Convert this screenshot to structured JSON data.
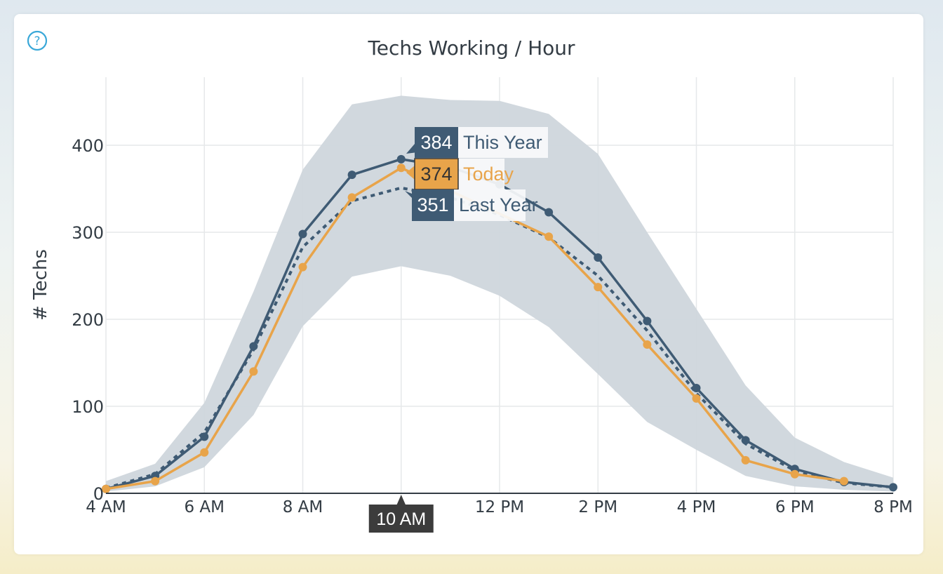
{
  "help_icon": "question-circle-icon",
  "chart_data": {
    "type": "line",
    "title": "Techs Working / Hour",
    "ylabel": "# Techs",
    "xlabel": "",
    "x_tick_labels": [
      "4 AM",
      "6 AM",
      "8 AM",
      "10 AM",
      "12 PM",
      "2 PM",
      "4 PM",
      "6 PM",
      "8 PM"
    ],
    "x_hours": [
      4,
      5,
      6,
      7,
      8,
      9,
      10,
      11,
      12,
      13,
      14,
      15,
      16,
      17,
      18,
      19,
      20
    ],
    "ylim": [
      0,
      480
    ],
    "y_ticks": [
      0,
      100,
      200,
      300,
      400
    ],
    "grid": true,
    "series": [
      {
        "name": "This Year",
        "color": "#3f5b74",
        "style": "solid",
        "markers": true,
        "values": [
          5,
          20,
          65,
          169,
          298,
          366,
          384,
          375,
          355,
          323,
          271,
          198,
          121,
          61,
          28,
          13,
          7
        ]
      },
      {
        "name": "Today",
        "color": "#e8a44a",
        "style": "solid",
        "markers": true,
        "values": [
          5,
          14,
          47,
          140,
          260,
          340,
          374,
          null,
          null,
          295,
          237,
          171,
          109,
          38,
          22,
          14,
          null
        ]
      },
      {
        "name": "Last Year",
        "color": "#3f5b74",
        "style": "dashed",
        "markers": false,
        "values": [
          6,
          22,
          70,
          165,
          283,
          336,
          351,
          340,
          320,
          294,
          250,
          187,
          115,
          57,
          26,
          12,
          7
        ]
      }
    ],
    "band": {
      "color": "#cfd6dc",
      "upper": [
        14,
        34,
        104,
        232,
        372,
        447,
        457,
        452,
        451,
        436,
        390,
        300,
        212,
        124,
        64,
        36,
        18
      ],
      "lower": [
        2,
        8,
        30,
        90,
        192,
        249,
        261,
        250,
        227,
        191,
        137,
        82,
        50,
        20,
        8,
        4,
        2
      ]
    },
    "hover": {
      "x_label": "10 AM",
      "x_hour": 10,
      "items": [
        {
          "value": "384",
          "label": "This Year",
          "box_color": "#3f5b74",
          "text_color": "#3f5b74",
          "y": 384
        },
        {
          "value": "374",
          "label": "Today",
          "box_color": "#e8a44a",
          "text_color": "#e8a44a",
          "y": 374
        },
        {
          "value": "351",
          "label": "Last Year",
          "box_color": "#3f5b74",
          "text_color": "#3f5b74",
          "y": 351
        }
      ]
    }
  }
}
